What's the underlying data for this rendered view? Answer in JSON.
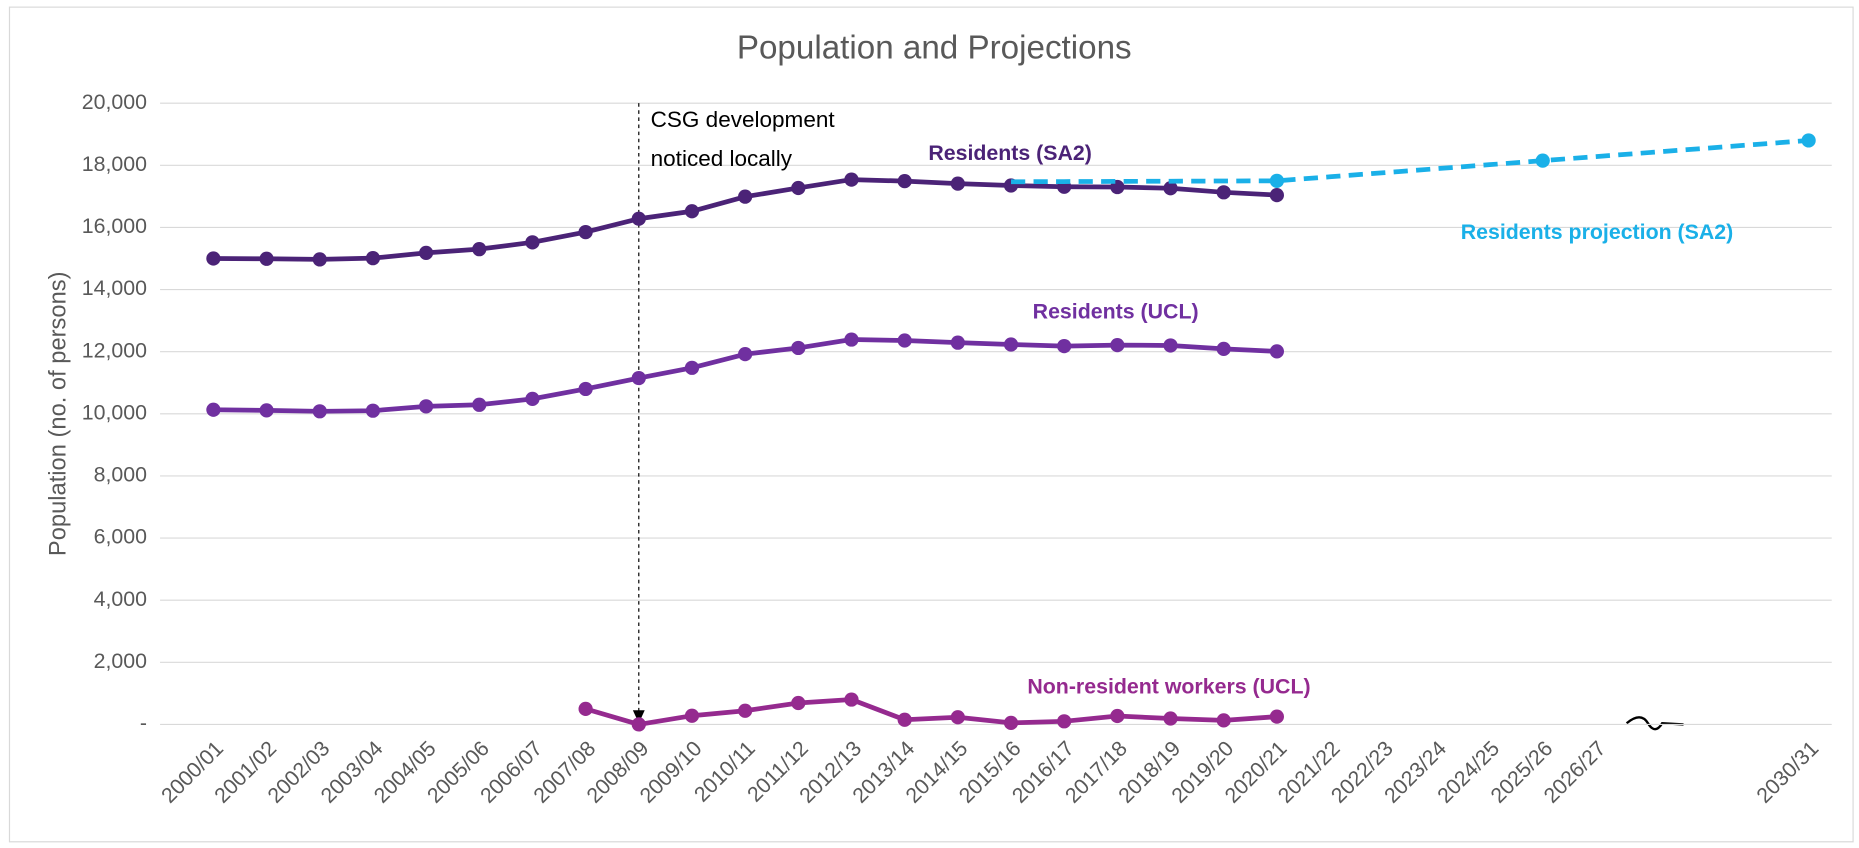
{
  "chart_data": {
    "type": "line",
    "title": "Population and Projections",
    "y_axis_label": "Population (no. of persons)",
    "annotation": "CSG   development noticed locally",
    "categories": [
      "2000/01",
      "2001/02",
      "2002/03",
      "2003/04",
      "2004/05",
      "2005/06",
      "2006/07",
      "2007/08",
      "2008/09",
      "2009/10",
      "2010/11",
      "2011/12",
      "2012/13",
      "2013/14",
      "2014/15",
      "2015/16",
      "2016/17",
      "2017/18",
      "2018/19",
      "2019/20",
      "2020/21",
      "2021/22",
      "2022/23",
      "2023/24",
      "2024/25",
      "2025/26",
      "2026/27",
      null,
      null,
      null,
      "2030/31"
    ],
    "ylim": [
      0,
      20000
    ],
    "yticks": [
      {
        "value": 0,
        "label": "-"
      },
      {
        "value": 2000,
        "label": "2,000"
      },
      {
        "value": 4000,
        "label": "4,000"
      },
      {
        "value": 6000,
        "label": "6,000"
      },
      {
        "value": 8000,
        "label": "8,000"
      },
      {
        "value": 10000,
        "label": "10,000"
      },
      {
        "value": 12000,
        "label": "12,000"
      },
      {
        "value": 14000,
        "label": "14,000"
      },
      {
        "value": 16000,
        "label": "16,000"
      },
      {
        "value": 18000,
        "label": "18,000"
      },
      {
        "value": 20000,
        "label": "20,000"
      }
    ],
    "grid": true,
    "series": [
      {
        "name": "Residents (SA2)",
        "color": "#4b2377",
        "dashed": false,
        "values": [
          15000,
          14990,
          14970,
          15010,
          15180,
          15300,
          15520,
          15850,
          16280,
          16520,
          16990,
          17270,
          17540,
          17490,
          17410,
          17350,
          17310,
          17300,
          17260,
          17130,
          17040,
          null,
          null,
          null,
          null,
          null,
          null,
          null,
          null,
          null,
          null
        ]
      },
      {
        "name": "Residents (UCL)",
        "color": "#7030a0",
        "dashed": false,
        "values": [
          10130,
          10110,
          10080,
          10100,
          10240,
          10290,
          10480,
          10800,
          11150,
          11480,
          11920,
          12120,
          12390,
          12360,
          12290,
          12230,
          12180,
          12210,
          12200,
          12090,
          12010,
          null,
          null,
          null,
          null,
          null,
          null,
          null,
          null,
          null,
          null
        ]
      },
      {
        "name": "Non-resident workers (UCL)",
        "color": "#952a8f",
        "dashed": false,
        "values": [
          null,
          null,
          null,
          null,
          null,
          null,
          null,
          500,
          0,
          280,
          440,
          690,
          800,
          150,
          230,
          50,
          100,
          270,
          190,
          130,
          250,
          null,
          null,
          null,
          null,
          null,
          null,
          null,
          null,
          null,
          null
        ]
      },
      {
        "name": "Residents projection (SA2)",
        "color": "#1ab0e8",
        "dashed": true,
        "values": [
          null,
          null,
          null,
          null,
          null,
          null,
          null,
          null,
          null,
          null,
          null,
          null,
          null,
          null,
          null,
          17470,
          17476,
          17482,
          17488,
          17494,
          17500,
          17630,
          17760,
          17890,
          18020,
          18150,
          18280,
          18410,
          18540,
          18670,
          18800
        ]
      }
    ]
  }
}
